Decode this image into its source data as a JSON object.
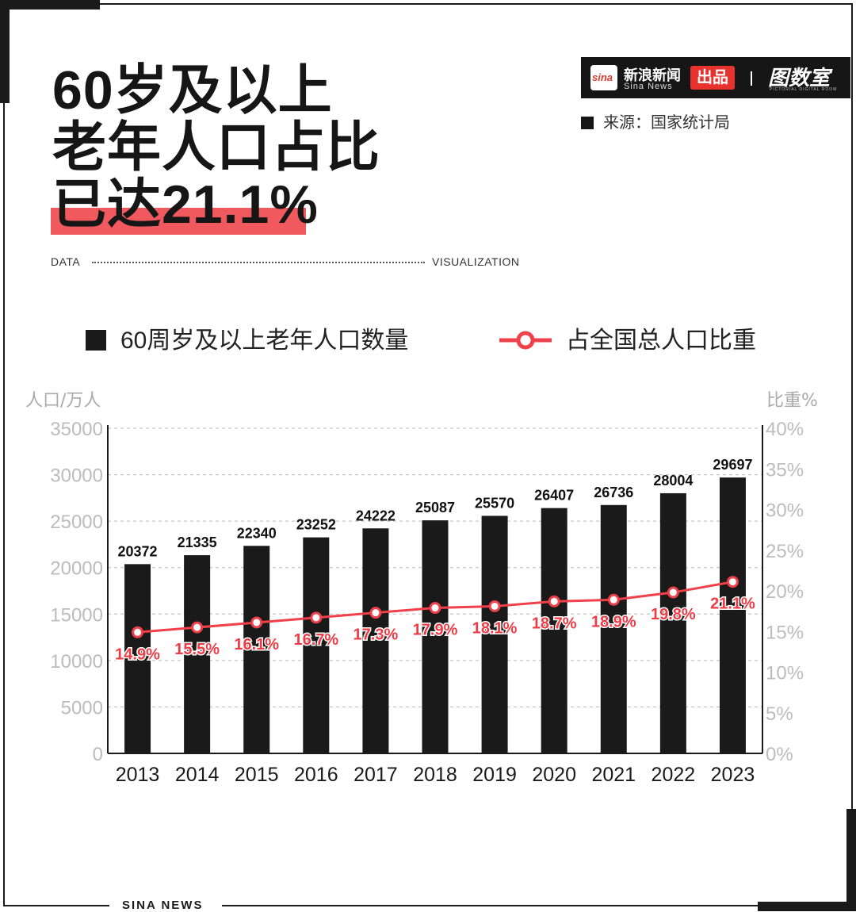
{
  "headline": {
    "line1": "60岁及以上",
    "line2": "老年人口占比",
    "line3": "已达21.1%"
  },
  "brand": {
    "logo_text": "sina",
    "name_cn": "新浪新闻",
    "name_en": "Sina News",
    "tag": "出品",
    "room": "图数室",
    "room_sub": "PICTORIAL DIGITAL ROOM"
  },
  "source": "来源：国家统计局",
  "strip": {
    "left": "DATA",
    "right": "VISUALIZATION"
  },
  "legend": {
    "bar_label": "60周岁及以上老年人口数量",
    "line_label": "占全国总人口比重"
  },
  "footer": "SINA NEWS",
  "colors": {
    "bar": "#1a1a1a",
    "line": "#f0404a",
    "highlight": "#f05a5f",
    "brand_red": "#e8322d"
  },
  "chart_data": {
    "type": "bar",
    "categories": [
      "2013",
      "2014",
      "2015",
      "2016",
      "2017",
      "2018",
      "2019",
      "2020",
      "2021",
      "2022",
      "2023"
    ],
    "series": [
      {
        "name": "60周岁及以上老年人口数量",
        "type": "bar",
        "axis": "left",
        "values": [
          20372,
          21335,
          22340,
          23252,
          24222,
          25087,
          25570,
          26407,
          26736,
          28004,
          29697
        ],
        "labels": [
          "20372",
          "21335",
          "22340",
          "23252",
          "24222",
          "25087",
          "25570",
          "26407",
          "26736",
          "28004",
          "29697"
        ]
      },
      {
        "name": "占全国总人口比重",
        "type": "line",
        "axis": "right",
        "values": [
          14.9,
          15.5,
          16.1,
          16.7,
          17.3,
          17.9,
          18.1,
          18.7,
          18.9,
          19.8,
          21.1
        ],
        "labels": [
          "14.9%",
          "15.5%",
          "16.1%",
          "16.7%",
          "17.3%",
          "17.9%",
          "18.1%",
          "18.7%",
          "18.9%",
          "19.8%",
          "21.1%"
        ]
      }
    ],
    "ylabel": "人口/万人",
    "y2label": "比重%",
    "ylim": [
      0,
      35000
    ],
    "y2lim": [
      0,
      40
    ],
    "y_ticks": [
      "0",
      "5000",
      "10000",
      "15000",
      "20000",
      "25000",
      "30000",
      "35000"
    ],
    "y2_ticks": [
      "0%",
      "5%",
      "10%",
      "15%",
      "20%",
      "25%",
      "30%",
      "35%",
      "40%"
    ],
    "grid": true,
    "legend_position": "top"
  }
}
